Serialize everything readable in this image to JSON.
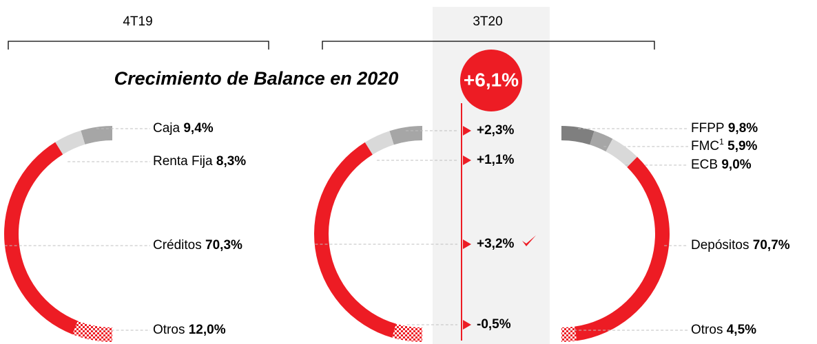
{
  "header": {
    "title": "Crecimiento de Balance en 2020",
    "total_growth": 6.1,
    "total_growth_label": "+6,1%"
  },
  "chart_data": [
    {
      "type": "half-donut",
      "title": "4T19",
      "side": "left",
      "categories": [
        "Caja",
        "Renta Fija",
        "Créditos",
        "Otros"
      ],
      "values": [
        9.4,
        8.3,
        70.3,
        12.0
      ],
      "value_labels": [
        "9,4%",
        "8,3%",
        "70,3%",
        "12,0%"
      ],
      "colors": [
        "#a6a6a6",
        "#d9d9d9",
        "#ed1c24",
        "#ed1c24"
      ],
      "hatch": [
        false,
        false,
        false,
        true
      ]
    },
    {
      "type": "half-donut",
      "title": "3T20",
      "side": "left",
      "values": [
        9.8,
        8.0,
        73.2,
        9.0
      ],
      "growth": [
        2.3,
        1.1,
        3.2,
        -0.5
      ],
      "growth_labels": [
        "+2,3%",
        "+1,1%",
        "+3,2%",
        "-0,5%"
      ],
      "colors": [
        "#a6a6a6",
        "#d9d9d9",
        "#ed1c24",
        "#ed1c24"
      ],
      "hatch": [
        false,
        false,
        false,
        true
      ]
    },
    {
      "type": "half-donut",
      "side": "right",
      "categories": [
        "FFPP",
        "FMC",
        "ECB",
        "Depósitos",
        "Otros"
      ],
      "footnotes": [
        null,
        "1",
        null,
        null,
        null
      ],
      "values": [
        9.8,
        5.9,
        9.0,
        70.7,
        4.5
      ],
      "value_labels": [
        "9,8%",
        "5,9%",
        "9,0%",
        "70,7%",
        "4,5%"
      ],
      "colors": [
        "#7f7f7f",
        "#a6a6a6",
        "#d9d9d9",
        "#ed1c24",
        "#ed1c24"
      ],
      "hatch": [
        false,
        false,
        false,
        false,
        true
      ]
    }
  ]
}
